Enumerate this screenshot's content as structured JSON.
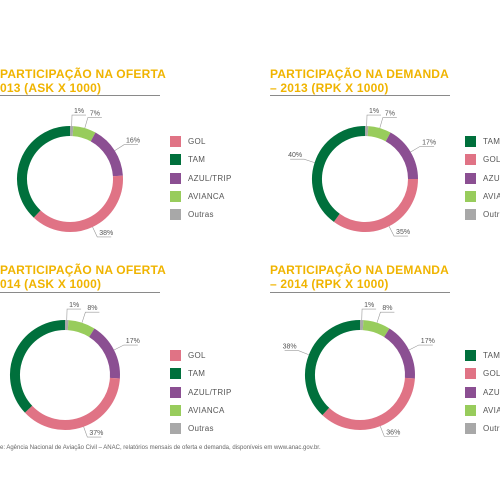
{
  "colors": {
    "title": "#f0b400",
    "leader": "#9a9a9a",
    "label": "#555555"
  },
  "chart_data": [
    {
      "type": "pie",
      "title": "PARTICIPAÇÃO NA OFERTA",
      "subtitle": "013 (ASK X 1000)",
      "categories": [
        "Outras",
        "AVIANCA",
        "AZUL/TRIP",
        "GOL",
        "TAM"
      ],
      "values": [
        1,
        7,
        16,
        38,
        38
      ],
      "value_labels": [
        "1%",
        "7%",
        "16%",
        "38%",
        ""
      ],
      "colors": [
        "#a8a8a8",
        "#98cc5c",
        "#8b4f92",
        "#e07385",
        "#00703c"
      ],
      "legend": [
        {
          "label": "GOL",
          "color": "#e07385"
        },
        {
          "label": "TAM",
          "color": "#00703c"
        },
        {
          "label": "AZUL/TRIP",
          "color": "#8b4f92"
        },
        {
          "label": "AVIANCA",
          "color": "#98cc5c"
        },
        {
          "label": "Outras",
          "color": "#a8a8a8"
        }
      ]
    },
    {
      "type": "pie",
      "title": "PARTICIPAÇÃO NA DEMANDA",
      "subtitle": "– 2013 (RPK X 1000)",
      "categories": [
        "Outras",
        "AVIANCA",
        "AZUL/TRIP",
        "GOL",
        "TAM"
      ],
      "values": [
        1,
        7,
        17,
        35,
        40
      ],
      "value_labels": [
        "1%",
        "7%",
        "17%",
        "35%",
        "40%"
      ],
      "colors": [
        "#a8a8a8",
        "#98cc5c",
        "#8b4f92",
        "#e07385",
        "#00703c"
      ],
      "legend": [
        {
          "label": "TAM",
          "color": "#00703c"
        },
        {
          "label": "GOL",
          "color": "#e07385"
        },
        {
          "label": "AZU",
          "color": "#8b4f92"
        },
        {
          "label": "AVIA",
          "color": "#98cc5c"
        },
        {
          "label": "Outr",
          "color": "#a8a8a8"
        }
      ]
    },
    {
      "type": "pie",
      "title": "PARTICIPAÇÃO NA OFERTA",
      "subtitle": "014 (ASK X 1000)",
      "categories": [
        "Outras",
        "AVIANCA",
        "AZUL/TRIP",
        "GOL",
        "TAM"
      ],
      "values": [
        1,
        8,
        17,
        37,
        37
      ],
      "value_labels": [
        "1%",
        "8%",
        "17%",
        "37%",
        ""
      ],
      "colors": [
        "#a8a8a8",
        "#98cc5c",
        "#8b4f92",
        "#e07385",
        "#00703c"
      ],
      "legend": [
        {
          "label": "GOL",
          "color": "#e07385"
        },
        {
          "label": "TAM",
          "color": "#00703c"
        },
        {
          "label": "AZUL/TRIP",
          "color": "#8b4f92"
        },
        {
          "label": "AVIANCA",
          "color": "#98cc5c"
        },
        {
          "label": "Outras",
          "color": "#a8a8a8"
        }
      ]
    },
    {
      "type": "pie",
      "title": "PARTICIPAÇÃO NA DEMANDA",
      "subtitle": "– 2014 (RPK X 1000)",
      "categories": [
        "Outras",
        "AVIANCA",
        "AZUL/TRIP",
        "GOL",
        "TAM"
      ],
      "values": [
        1,
        8,
        17,
        36,
        38
      ],
      "value_labels": [
        "1%",
        "8%",
        "17%",
        "36%",
        "38%"
      ],
      "colors": [
        "#a8a8a8",
        "#98cc5c",
        "#8b4f92",
        "#e07385",
        "#00703c"
      ],
      "legend": [
        {
          "label": "TAM",
          "color": "#00703c"
        },
        {
          "label": "GOL",
          "color": "#e07385"
        },
        {
          "label": "AZU",
          "color": "#8b4f92"
        },
        {
          "label": "AVIA",
          "color": "#98cc5c"
        },
        {
          "label": "Outr",
          "color": "#a8a8a8"
        }
      ]
    }
  ],
  "source_note": "e: Agência Nacional de Aviação Civil – ANAC, relatórios mensais de oferta e demanda, disponíveis em www.anac.gov.br."
}
